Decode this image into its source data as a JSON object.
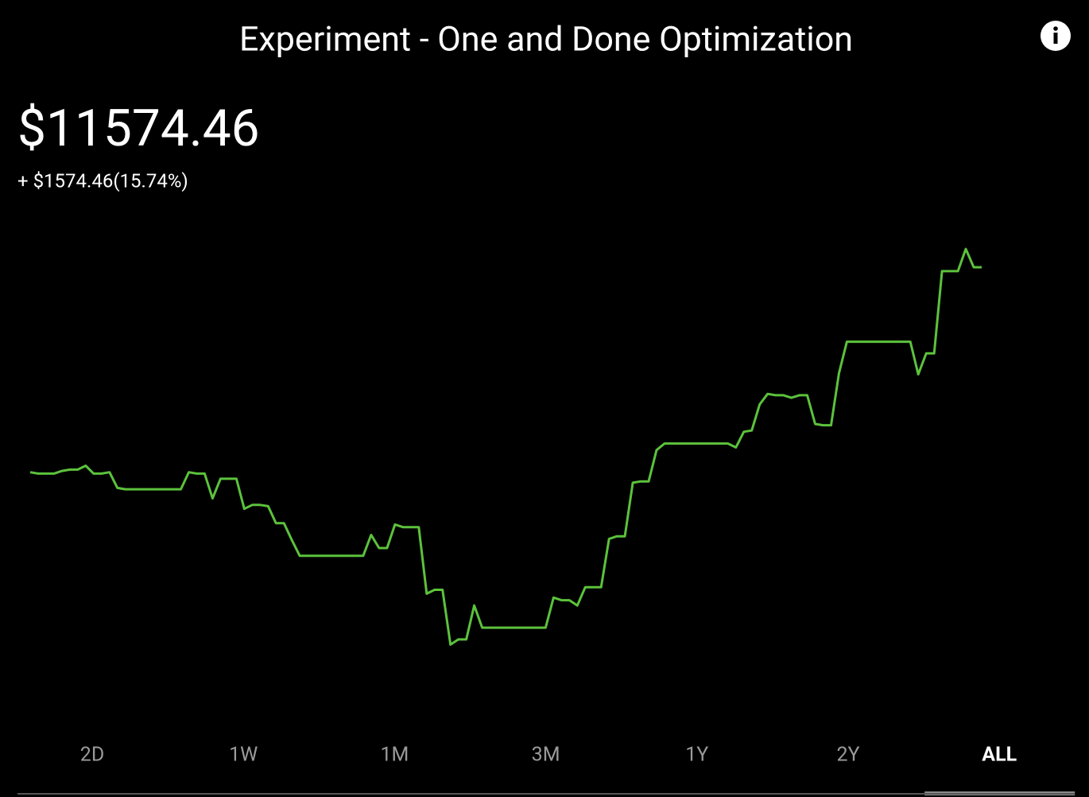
{
  "header": {
    "title": "Experiment - One and Done Optimization",
    "balance": "$11574.46",
    "change": "+ $1574.46(15.74%)"
  },
  "chart_data": {
    "type": "line",
    "color": "#5cc23c",
    "ylim": [
      8500,
      11850
    ],
    "values": [
      10000,
      9990,
      9990,
      9990,
      10010,
      10020,
      10020,
      10050,
      9990,
      9990,
      10000,
      9880,
      9870,
      9870,
      9870,
      9870,
      9870,
      9870,
      9870,
      9870,
      10000,
      9990,
      9990,
      9800,
      9950,
      9950,
      9950,
      9720,
      9750,
      9750,
      9740,
      9610,
      9610,
      9480,
      9360,
      9360,
      9360,
      9360,
      9360,
      9360,
      9360,
      9360,
      9360,
      9520,
      9420,
      9420,
      9600,
      9580,
      9580,
      9580,
      9070,
      9100,
      9100,
      8680,
      8720,
      8720,
      8980,
      8810,
      8810,
      8810,
      8810,
      8810,
      8810,
      8810,
      8810,
      8810,
      9040,
      9020,
      9020,
      8980,
      9120,
      9120,
      9120,
      9490,
      9510,
      9510,
      9920,
      9930,
      9930,
      10170,
      10220,
      10220,
      10220,
      10220,
      10220,
      10220,
      10220,
      10220,
      10220,
      10190,
      10310,
      10320,
      10520,
      10600,
      10590,
      10590,
      10570,
      10590,
      10590,
      10370,
      10360,
      10360,
      10760,
      11000,
      11000,
      11000,
      11000,
      11000,
      11000,
      11000,
      11000,
      11000,
      10750,
      10910,
      10910,
      11540,
      11540,
      11540,
      11710,
      11570,
      11570
    ]
  },
  "tabs": {
    "items": [
      "2D",
      "1W",
      "1M",
      "3M",
      "1Y",
      "2Y",
      "ALL"
    ],
    "active": 6
  }
}
